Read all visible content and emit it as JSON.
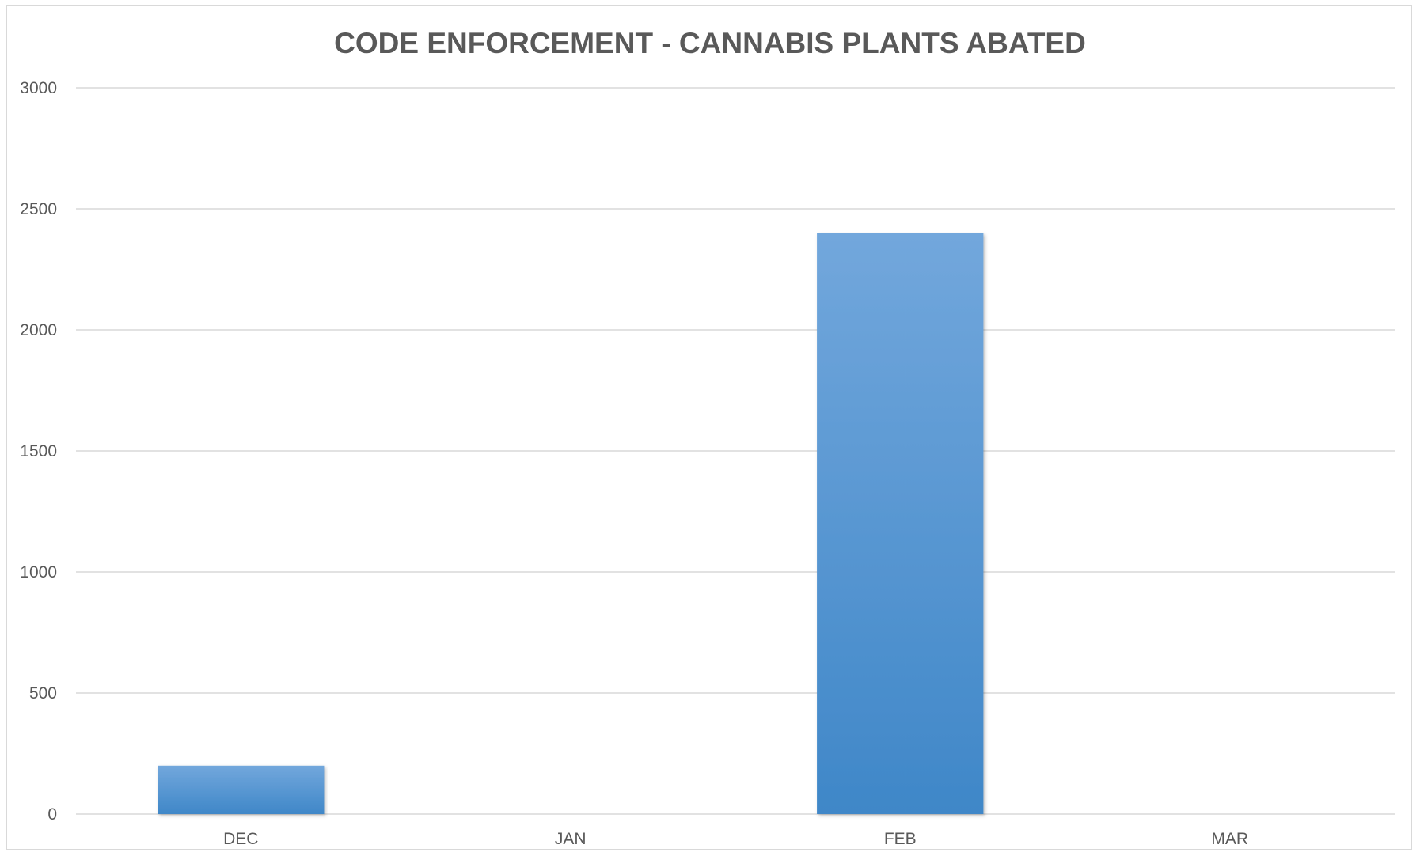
{
  "chart_data": {
    "type": "bar",
    "title": "CODE ENFORCEMENT - CANNABIS PLANTS ABATED",
    "categories": [
      "DEC",
      "JAN",
      "FEB",
      "MAR"
    ],
    "values": [
      200,
      0,
      2400,
      0
    ],
    "ylim": [
      0,
      3000
    ],
    "yticks": [
      "0",
      "500",
      "1000",
      "1500",
      "2000",
      "2500",
      "3000"
    ],
    "grid": true,
    "legend": "none",
    "colors": {
      "bar_top": "#72a7dc",
      "bar_bottom": "#3f87c8",
      "grid": "#d9d9d9",
      "text": "#595959"
    }
  }
}
